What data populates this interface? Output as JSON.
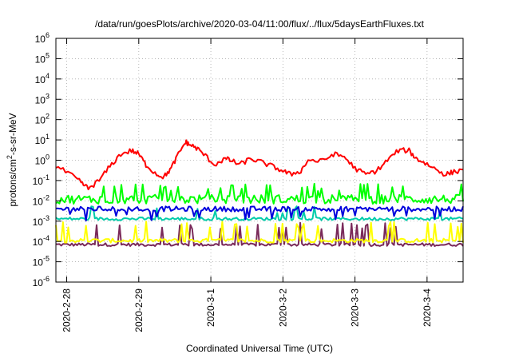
{
  "chart_data": {
    "type": "line",
    "title": "/data/run/goesPlots/archive/2020-03-04/11:00/flux/../flux/5daysEarthFluxes.txt",
    "xlabel": "Coordinated Universal Time (UTC)",
    "ylabel_parts": {
      "base": "protons/cm",
      "sup": "2",
      "rest": "-s-sr-MeV"
    },
    "x_ticks": [
      "2020-2-28",
      "2020-2-29",
      "2020-3-1",
      "2020-3-2",
      "2020-3-3",
      "2020-3-4"
    ],
    "x_tick_days": [
      0,
      1,
      2,
      3,
      4,
      5
    ],
    "x_range_days": [
      -0.15,
      5.5
    ],
    "y_scale": "log",
    "y_range": [
      1e-06,
      1000000.0
    ],
    "y_ticks": [
      {
        "base": "10",
        "exp": "6",
        "value": 1000000.0
      },
      {
        "base": "10",
        "exp": "5",
        "value": 100000.0
      },
      {
        "base": "10",
        "exp": "4",
        "value": 10000.0
      },
      {
        "base": "10",
        "exp": "3",
        "value": 1000.0
      },
      {
        "base": "10",
        "exp": "2",
        "value": 100.0
      },
      {
        "base": "10",
        "exp": "1",
        "value": 10.0
      },
      {
        "base": "10",
        "exp": "0",
        "value": 1.0
      },
      {
        "base": "10",
        "exp": "-1",
        "value": 0.1
      },
      {
        "base": "10",
        "exp": "-2",
        "value": 0.01
      },
      {
        "base": "10",
        "exp": "-3",
        "value": 0.001
      },
      {
        "base": "10",
        "exp": "-4",
        "value": 0.0001
      },
      {
        "base": "10",
        "exp": "-5",
        "value": 1e-05
      },
      {
        "base": "10",
        "exp": "-6",
        "value": 1e-06
      }
    ],
    "grid": true,
    "series": [
      {
        "color": "#ff0000",
        "x": [
          -0.15,
          0.05,
          0.2,
          0.3,
          0.45,
          0.6,
          0.75,
          0.9,
          1.0,
          1.1,
          1.25,
          1.35,
          1.45,
          1.55,
          1.65,
          1.7,
          1.8,
          1.9,
          2.05,
          2.2,
          2.3,
          2.4,
          2.55,
          2.7,
          2.85,
          3.0,
          3.1,
          3.25,
          3.35,
          3.55,
          3.7,
          3.85,
          4.0,
          4.15,
          4.3,
          4.45,
          4.6,
          4.75,
          4.85,
          4.95,
          5.1,
          5.25,
          5.35,
          5.5
        ],
        "y": [
          0.5,
          0.2,
          0.08,
          0.04,
          0.1,
          0.5,
          2,
          3,
          2,
          0.6,
          0.2,
          0.15,
          0.4,
          2,
          8,
          6,
          4,
          2,
          0.6,
          1.2,
          0.9,
          0.6,
          1.2,
          0.8,
          0.5,
          0.3,
          0.2,
          0.3,
          1,
          0.9,
          2,
          1.5,
          0.4,
          0.2,
          0.3,
          1,
          3,
          3,
          1.2,
          0.8,
          0.4,
          0.2,
          0.25,
          0.35
        ]
      },
      {
        "color": "#00ff00",
        "base": 0.012,
        "spread": 0.45,
        "spike": 0.05,
        "spike_prob": 0.12
      },
      {
        "color": "#0000dd",
        "base": 0.004,
        "spread": 0.25,
        "spike": 0.003,
        "spike_prob": 0.06,
        "dip": 0.0015,
        "dip_prob": 0.08
      },
      {
        "color": "#00ccaa",
        "base": 0.0013,
        "spread": 0.15,
        "spike": 0.004,
        "spike_prob": 0.05
      },
      {
        "color": "#ffff00",
        "base": 0.00011,
        "spread": 0.2,
        "spike": 0.0007,
        "spike_prob": 0.1
      },
      {
        "color": "#7a2a5a",
        "base": 7e-05,
        "spread": 0.15,
        "spike": 0.0006,
        "spike_prob": 0.12
      }
    ]
  }
}
